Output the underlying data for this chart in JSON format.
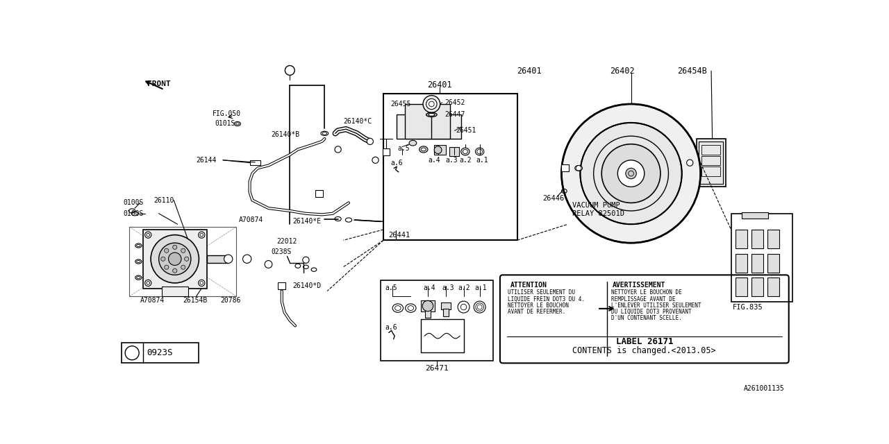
{
  "bg_color": "#FFFFFF",
  "line_color": "#000000",
  "fig_width": 12.8,
  "fig_height": 6.4,
  "dpi": 100,
  "labels": {
    "front_arrow": "FRONT",
    "fig050": "FIG.050",
    "fig835": "FIG.835",
    "vacuum_pump_line1": "VACUUM PUMP",
    "vacuum_pump_line2": "RELAY 82501D",
    "label_26171": "LABEL 26171",
    "contents_changed": "CONTENTS is changed.<2013.05>",
    "part_26401": "26401",
    "part_26402": "26402",
    "part_26454B": "26454B",
    "part_26455": "26455",
    "part_26452": "26452",
    "part_26447": "26447",
    "part_26451": "26451",
    "part_26446": "26446",
    "part_26441": "26441",
    "part_26471": "26471",
    "part_26144": "26144",
    "part_26110": "26110",
    "part_A70874a": "A70874",
    "part_A70874b": "A70874",
    "part_26154B": "26154B",
    "part_20786": "20786",
    "part_0100S": "0100S",
    "part_0101S": "0101S",
    "part_0923S": "0923S",
    "part_22012": "22012",
    "part_0238S": "0238S",
    "part_26140C": "26140*C",
    "part_26140B": "26140*B",
    "part_26140E": "26140*E",
    "part_26140D": "26140*D",
    "attention_title": "ATTENTION",
    "attention_text1": "UTILISER SEULEMENT DU",
    "attention_text2": "LIQUIDE FREIN DOT3 DU 4.",
    "attention_text3": "NETTOYER LE BOUCHON",
    "attention_text4": "AVANT DE REFERMER.",
    "avertissement_title": "AVERTISSEMENT",
    "avertissement_text1": "NETTOYER LE BOUCHON DE",
    "avertissement_text2": "REMPLISSAGE AVANT DE",
    "avertissement_text3": "L'ENLEVER UTILISER SEULEMENT",
    "avertissement_text4": "DU LIQUIDE DOT3 PROVENANT",
    "avertissement_text5": "D'UN CONTENANT SCELLE.",
    "a1": "a.1",
    "a2": "a.2",
    "a3": "a.3",
    "a4": "a.4",
    "a5": "a.5",
    "a6": "a.6",
    "bottom_ref": "A261001135"
  }
}
